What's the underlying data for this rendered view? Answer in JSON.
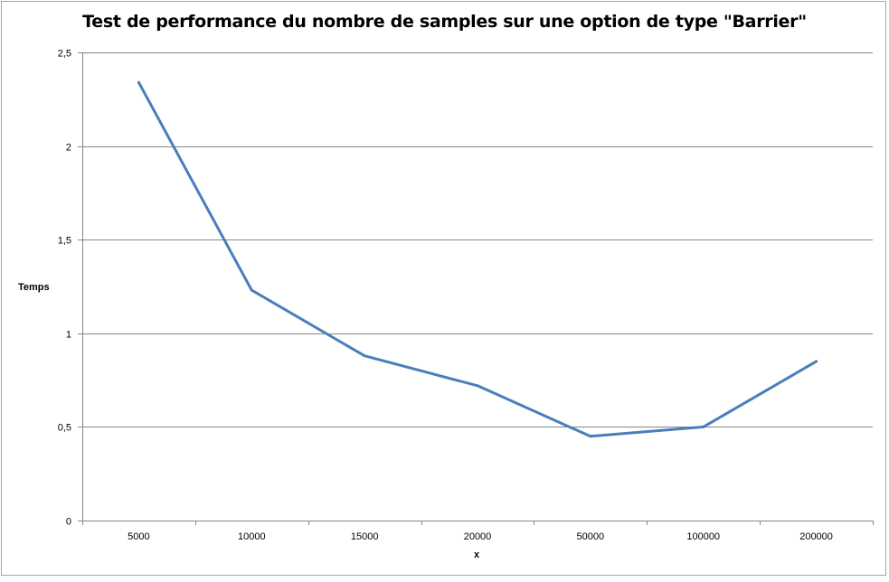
{
  "chart_data": {
    "type": "line",
    "title": "Test de performance du nombre de samples sur une option de type \"Barrier\"",
    "xlabel": "x",
    "ylabel": "Temps",
    "categories": [
      "5000",
      "10000",
      "15000",
      "20000",
      "50000",
      "100000",
      "200000"
    ],
    "series": [
      {
        "values": [
          2.34,
          1.23,
          0.88,
          0.72,
          0.45,
          0.5,
          0.85
        ],
        "color": "#4a7ebb"
      }
    ],
    "ylim": [
      0,
      2.5
    ],
    "yticks": [
      "0",
      "0,5",
      "1",
      "1,5",
      "2",
      "2,5"
    ],
    "grid": true,
    "legend": "none"
  }
}
